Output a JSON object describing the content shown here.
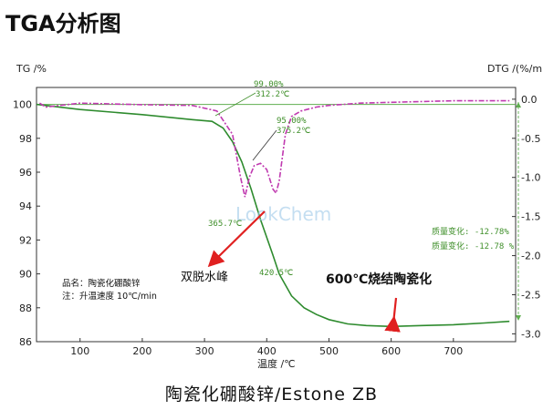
{
  "page": {
    "title": "TGA分析图",
    "caption": "陶瓷化硼酸锌/Estone ZB"
  },
  "chart_data": {
    "type": "line",
    "xlabel": "温度 /℃",
    "ylabel_left": "TG /%",
    "ylabel_right": "DTG /(%/min)",
    "xlim": [
      30,
      800
    ],
    "ylim_left": [
      86,
      101
    ],
    "ylim_right": [
      -3.1,
      0.15
    ],
    "x_ticks": [
      100,
      200,
      300,
      400,
      500,
      600,
      700
    ],
    "y_ticks_left": [
      86,
      88,
      90,
      92,
      94,
      96,
      98,
      100
    ],
    "y_ticks_right": [
      "0.0",
      "-0.5",
      "-1.0",
      "-1.5",
      "-2.0",
      "-2.5",
      "-3.0"
    ],
    "y_ticks_right_values": [
      0.0,
      -0.5,
      -1.0,
      -1.5,
      -2.0,
      -2.5,
      -3.0
    ],
    "series": [
      {
        "role": "TG",
        "color": "#2e8b2e",
        "x": [
          30,
          100,
          200,
          280,
          312,
          330,
          345,
          360,
          375,
          390,
          410,
          420,
          440,
          460,
          480,
          500,
          530,
          560,
          600,
          650,
          700,
          750,
          790
        ],
        "y": [
          100.0,
          99.7,
          99.4,
          99.1,
          99.0,
          98.6,
          97.8,
          96.6,
          95.0,
          93.2,
          91.1,
          90.0,
          88.7,
          88.0,
          87.6,
          87.3,
          87.05,
          86.95,
          86.9,
          86.95,
          87.0,
          87.1,
          87.2
        ]
      },
      {
        "role": "DTG",
        "color": "#c03ab0",
        "x": [
          35,
          45,
          100,
          200,
          280,
          320,
          345,
          358,
          365,
          372,
          380,
          390,
          400,
          410,
          415,
          420,
          430,
          440,
          455,
          480,
          500,
          550,
          600,
          700,
          790
        ],
        "y": [
          -0.05,
          -0.1,
          -0.05,
          -0.07,
          -0.08,
          -0.15,
          -0.45,
          -1.0,
          -1.25,
          -1.0,
          -0.85,
          -0.82,
          -0.9,
          -1.15,
          -1.2,
          -1.05,
          -0.45,
          -0.22,
          -0.15,
          -0.1,
          -0.08,
          -0.05,
          -0.04,
          -0.02,
          -0.02
        ]
      }
    ],
    "baseline": {
      "y": 100,
      "color": "#5fae4f"
    },
    "annotations": {
      "a1_pct": "99.00%",
      "a1_temp": "312.2℃",
      "a2_pct": "95.00%",
      "a2_temp": "375.2℃",
      "peak1": "365.7℃",
      "peak2": "420.5℃",
      "mass_change_1": "质量变化: -12.78%",
      "mass_change_2": "质量变化: -12.78 %",
      "sample_name": "品名：陶瓷化硼酸锌",
      "note": "注：升温速度 10℃/min",
      "dehydration_peak": "双脱水峰",
      "sintering": "600℃烧结陶瓷化",
      "watermark": "LookChem"
    }
  }
}
